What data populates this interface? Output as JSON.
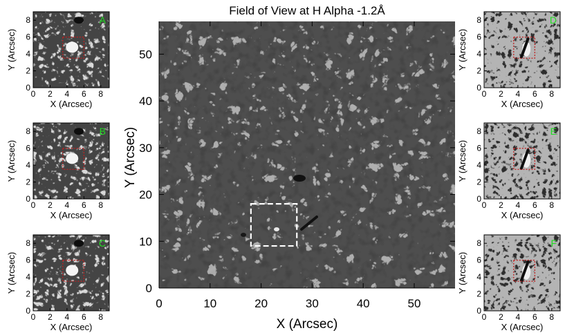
{
  "main_panel": {
    "title": "Field of View at H Alpha -1.2Å",
    "x_axis_label": "X (Arcsec)",
    "y_axis_label": "Y (Arcsec)",
    "x_ticks": [
      "0",
      "10",
      "20",
      "30",
      "40",
      "50"
    ],
    "y_ticks": [
      "0",
      "10",
      "20",
      "30",
      "40",
      "50"
    ],
    "x_range": [
      0,
      58
    ],
    "y_range": [
      0,
      57
    ],
    "roi_box": {
      "x0": 18,
      "x1": 27,
      "y0": 9,
      "y1": 18,
      "style": "dashed",
      "color": "#ffffff"
    }
  },
  "inset_panels": {
    "x_axis_label": "X (Arcsec)",
    "y_axis_label": "Y (Arcsec)",
    "x_ticks": [
      "0",
      "2",
      "4",
      "6",
      "8"
    ],
    "y_ticks": [
      "0",
      "2",
      "4",
      "6",
      "8"
    ],
    "range": [
      0,
      9
    ],
    "roi_box": {
      "x0": 3.5,
      "x1": 6.0,
      "y0": 3.5,
      "y1": 6.0,
      "style": "dotted",
      "color": "#c02020"
    },
    "letter_color": "#22dd22",
    "left_column": [
      {
        "letter": "A",
        "appearance": "bright"
      },
      {
        "letter": "B",
        "appearance": "bright"
      },
      {
        "letter": "C",
        "appearance": "bright"
      }
    ],
    "right_column": [
      {
        "letter": "D",
        "appearance": "dark"
      },
      {
        "letter": "E",
        "appearance": "dark"
      },
      {
        "letter": "F",
        "appearance": "dark"
      }
    ]
  }
}
